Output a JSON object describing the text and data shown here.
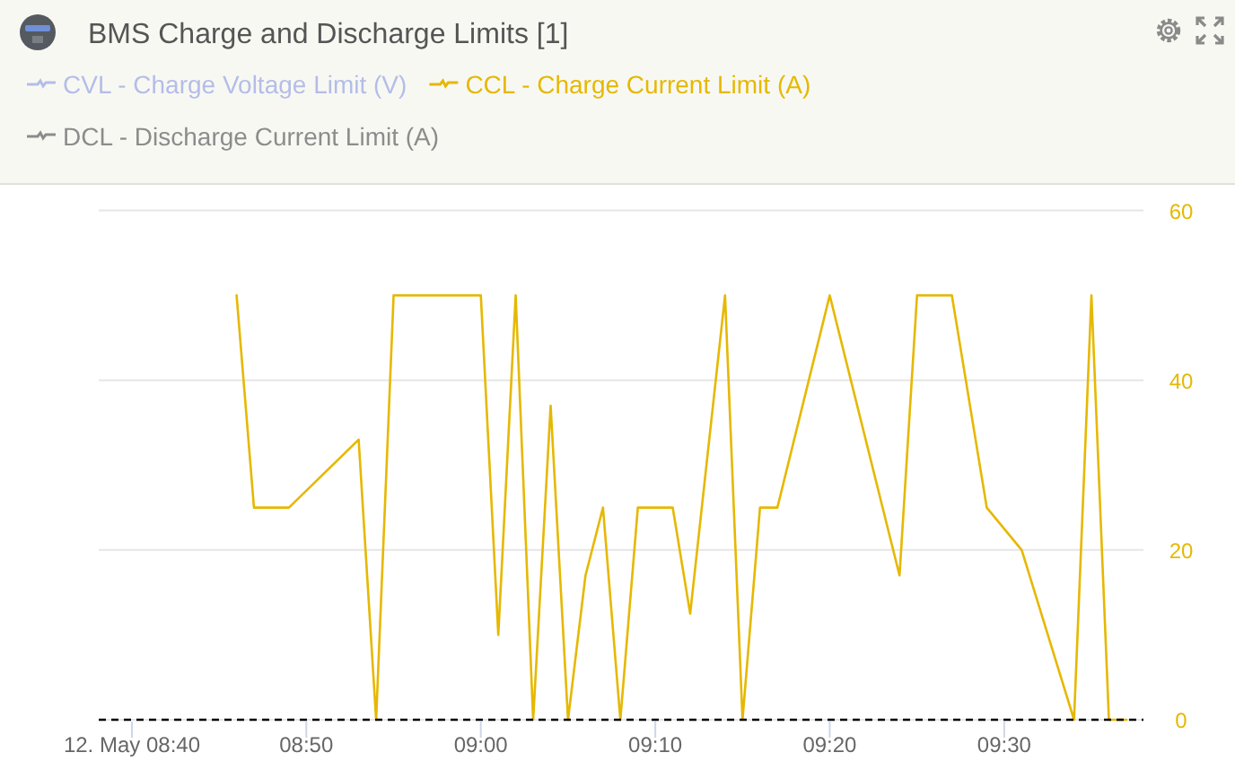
{
  "chart_data": {
    "type": "line",
    "title": "BMS Charge and Discharge Limits [1]",
    "x": [
      8.7667,
      8.7833,
      8.8167,
      8.8833,
      8.9,
      8.9167,
      8.9833,
      9,
      9.0167,
      9.0333,
      9.05,
      9.0667,
      9.0833,
      9.1,
      9.1167,
      9.1333,
      9.15,
      9.1667,
      9.1833,
      9.2,
      9.2333,
      9.25,
      9.2667,
      9.2833,
      9.3333,
      9.4,
      9.4167,
      9.45,
      9.4833,
      9.5167,
      9.5667,
      9.5833,
      9.6,
      9.6167
    ],
    "series": [
      {
        "name": "CVL - Charge Voltage Limit (V)",
        "color": "#b4bde8",
        "values": [
          null,
          null,
          null,
          null,
          null,
          null,
          null,
          null,
          null,
          null,
          null,
          null,
          null,
          null,
          null,
          null,
          null,
          null,
          null,
          null,
          null,
          null,
          null,
          null,
          null,
          null,
          null,
          null,
          null,
          null,
          null,
          null,
          null,
          null
        ]
      },
      {
        "name": "CCL - Charge Current Limit (A)",
        "color": "#e6b800",
        "values": [
          50,
          25,
          25,
          33,
          0,
          50,
          50,
          50,
          10,
          50,
          0,
          37,
          0,
          17,
          25,
          0,
          25,
          25,
          25,
          12.5,
          50,
          0,
          25,
          25,
          50,
          17,
          50,
          50,
          25,
          20,
          0,
          50,
          0,
          0
        ]
      },
      {
        "name": "DCL - Discharge Current Limit (A)",
        "color": "#8c8c8c",
        "values": [
          null,
          null,
          null,
          null,
          null,
          null,
          null,
          null,
          null,
          null,
          null,
          null,
          null,
          null,
          null,
          null,
          null,
          null,
          null,
          null,
          null,
          null,
          null,
          null,
          null,
          null,
          null,
          null,
          null,
          null,
          null,
          null,
          null,
          null
        ]
      }
    ],
    "xlim": [
      8.635,
      9.633
    ],
    "xticks": [
      {
        "value": 8.6667,
        "label": "12. May 08:40"
      },
      {
        "value": 8.8333,
        "label": "08:50"
      },
      {
        "value": 9,
        "label": "09:00"
      },
      {
        "value": 9.1667,
        "label": "09:10"
      },
      {
        "value": 9.3333,
        "label": "09:20"
      },
      {
        "value": 9.5,
        "label": "09:30"
      }
    ],
    "ylim": [
      0,
      60
    ],
    "yticks": [
      0,
      20,
      40,
      60
    ],
    "grid": "y",
    "legend": "top left",
    "ref_lines": [
      {
        "axis": "y",
        "value": 0,
        "color": "#000000",
        "line_style": "dashed"
      }
    ]
  }
}
